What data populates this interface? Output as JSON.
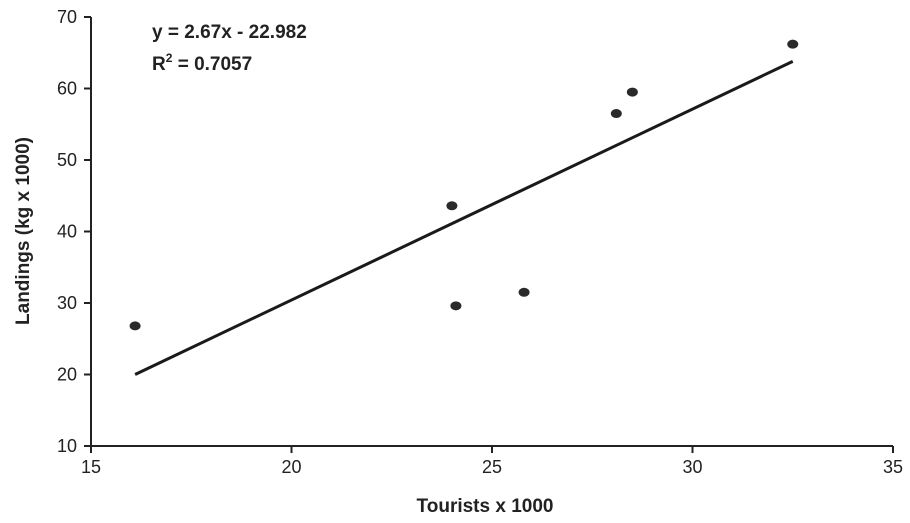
{
  "chart_data": {
    "type": "scatter",
    "xlabel": "Tourists x 1000",
    "ylabel": "Landings (kg x 1000)",
    "xlim": [
      15,
      35
    ],
    "ylim": [
      10,
      70
    ],
    "xticks": [
      15,
      20,
      25,
      30,
      35
    ],
    "yticks": [
      10,
      20,
      30,
      40,
      50,
      60,
      70
    ],
    "grid": false,
    "legend": "none",
    "series": [
      {
        "points": [
          {
            "x": 16.1,
            "y": 26.8
          },
          {
            "x": 24.0,
            "y": 43.6
          },
          {
            "x": 24.1,
            "y": 29.6
          },
          {
            "x": 25.8,
            "y": 31.5
          },
          {
            "x": 28.1,
            "y": 56.5
          },
          {
            "x": 28.5,
            "y": 59.5
          },
          {
            "x": 32.5,
            "y": 66.2
          }
        ]
      }
    ],
    "trendline": {
      "type": "linear",
      "slope": 2.67,
      "intercept": -22.982,
      "x_range": [
        16.1,
        32.5
      ],
      "equation_label": "y = 2.67x - 22.982",
      "r2_prefix": "R",
      "r2_sup": "2",
      "r2_value": " = 0.7057"
    },
    "colors": {
      "marker": "#2a2a2a",
      "line": "#1a1a1a",
      "axis": "#222222"
    }
  }
}
